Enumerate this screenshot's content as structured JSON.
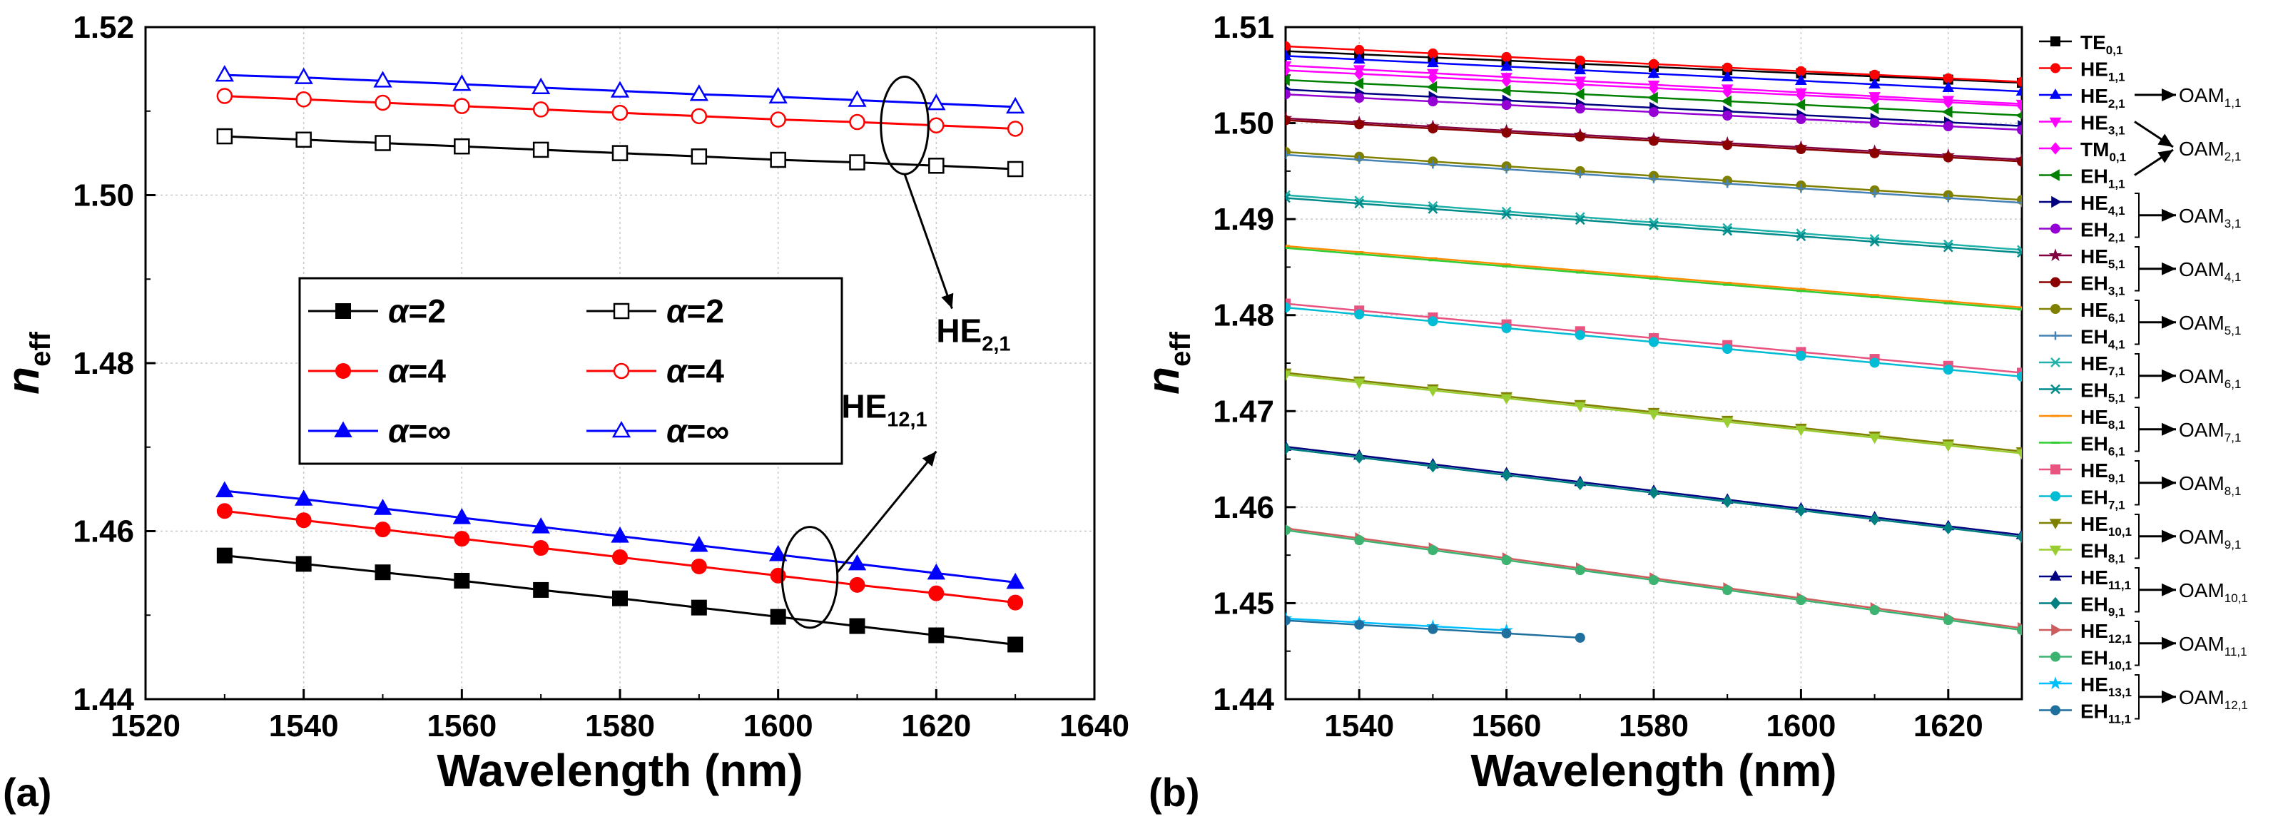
{
  "panels": [
    {
      "panel_label": "(a)",
      "chart_data": {
        "type": "line",
        "xlabel": "Wavelength (nm)",
        "ylabel": "n",
        "ylabel_sub": "eff",
        "xlim": [
          1520,
          1640
        ],
        "ylim": [
          1.44,
          1.52
        ],
        "xticks": [
          1520,
          1540,
          1560,
          1580,
          1600,
          1620,
          1640
        ],
        "yticks": [
          1.44,
          1.46,
          1.48,
          1.5,
          1.52
        ],
        "ytick_labels": [
          "1.44",
          "1.46",
          "1.48",
          "1.50",
          "1.52"
        ],
        "grid": true,
        "legend_placement": "center-left",
        "series": [
          {
            "name": "α=2",
            "marker": "square",
            "filled": true,
            "color": "#000000",
            "x": [
              1530,
              1540,
              1550,
              1560,
              1570,
              1580,
              1590,
              1600,
              1610,
              1620,
              1630
            ],
            "y": [
              1.4571,
              1.4561,
              1.4551,
              1.4541,
              1.453,
              1.452,
              1.4509,
              1.4498,
              1.4487,
              1.4476,
              1.4465
            ]
          },
          {
            "name": "α=4",
            "marker": "circle",
            "filled": true,
            "color": "#ff0000",
            "x": [
              1530,
              1540,
              1550,
              1560,
              1570,
              1580,
              1590,
              1600,
              1610,
              1620,
              1630
            ],
            "y": [
              1.4624,
              1.4613,
              1.4602,
              1.4591,
              1.458,
              1.4569,
              1.4558,
              1.4547,
              1.4536,
              1.4526,
              1.4515
            ]
          },
          {
            "name": "α=∞",
            "marker": "triangle",
            "filled": true,
            "color": "#0000ff",
            "x": [
              1530,
              1540,
              1550,
              1560,
              1570,
              1580,
              1590,
              1600,
              1610,
              1620,
              1630
            ],
            "y": [
              1.4648,
              1.4638,
              1.4627,
              1.4616,
              1.4605,
              1.4594,
              1.4583,
              1.4572,
              1.4561,
              1.455,
              1.4539
            ]
          },
          {
            "name": "α=2",
            "marker": "square",
            "filled": false,
            "color": "#000000",
            "x": [
              1530,
              1540,
              1550,
              1560,
              1570,
              1580,
              1590,
              1600,
              1610,
              1620,
              1630
            ],
            "y": [
              1.507,
              1.5066,
              1.5062,
              1.5058,
              1.5054,
              1.505,
              1.5046,
              1.5042,
              1.5039,
              1.5035,
              1.5031
            ]
          },
          {
            "name": "α=4",
            "marker": "circle",
            "filled": false,
            "color": "#ff0000",
            "x": [
              1530,
              1540,
              1550,
              1560,
              1570,
              1580,
              1590,
              1600,
              1610,
              1620,
              1630
            ],
            "y": [
              1.5118,
              1.5114,
              1.511,
              1.5106,
              1.5102,
              1.5098,
              1.5094,
              1.509,
              1.5087,
              1.5083,
              1.5079
            ]
          },
          {
            "name": "α=∞",
            "marker": "triangle",
            "filled": false,
            "color": "#0000ff",
            "x": [
              1530,
              1540,
              1550,
              1560,
              1570,
              1580,
              1590,
              1600,
              1610,
              1620,
              1630
            ],
            "y": [
              1.5143,
              1.514,
              1.5136,
              1.5132,
              1.5128,
              1.5124,
              1.512,
              1.5117,
              1.5113,
              1.5109,
              1.5105
            ]
          }
        ],
        "annotations": [
          {
            "text": "HE",
            "sub": "2,1",
            "ellipse_center": [
              1616,
              1.5083
            ],
            "ellipse_radii": [
              3,
              0.0058
            ],
            "arrow_to": [
              1622,
              1.4865
            ],
            "text_at": [
              1620,
              1.4825
            ]
          },
          {
            "text": "HE",
            "sub": "12,1",
            "ellipse_center": [
              1604,
              1.4545
            ],
            "ellipse_radii": [
              3.5,
              0.006
            ],
            "arrow_to": [
              1620,
              1.4695
            ],
            "text_at": [
              1608,
              1.4735
            ]
          }
        ]
      }
    },
    {
      "panel_label": "(b)",
      "chart_data": {
        "type": "line",
        "xlabel": "Wavelength (nm)",
        "ylabel": "n",
        "ylabel_sub": "eff",
        "xlim": [
          1530,
          1630
        ],
        "ylim": [
          1.44,
          1.51
        ],
        "xticks": [
          1540,
          1560,
          1580,
          1600,
          1620
        ],
        "yticks": [
          1.44,
          1.45,
          1.46,
          1.47,
          1.48,
          1.49,
          1.5,
          1.51
        ],
        "ytick_labels": [
          "1.44",
          "1.45",
          "1.46",
          "1.47",
          "1.48",
          "1.49",
          "1.50",
          "1.51"
        ],
        "grid": true,
        "legend_placement": "outside-right",
        "x_points": [
          1530,
          1540,
          1550,
          1560,
          1570,
          1580,
          1590,
          1600,
          1610,
          1620,
          1630
        ],
        "series": [
          {
            "name": "TE",
            "sub": "0,1",
            "color": "#000000",
            "marker": "square",
            "y_start": 1.5075,
            "y_end": 1.5042
          },
          {
            "name": "HE",
            "sub": "1,1",
            "color": "#ff0000",
            "marker": "circle",
            "y_start": 1.508,
            "y_end": 1.5043
          },
          {
            "name": "HE",
            "sub": "2,1",
            "color": "#0000ff",
            "marker": "triangle",
            "y_start": 1.507,
            "y_end": 1.5033
          },
          {
            "name": "HE",
            "sub": "3,1",
            "color": "#ff00ff",
            "marker": "tri-down",
            "y_start": 1.506,
            "y_end": 1.502
          },
          {
            "name": "TM",
            "sub": "0,1",
            "color": "#ff00ff",
            "marker": "diamond",
            "y_start": 1.5055,
            "y_end": 1.5018
          },
          {
            "name": "EH",
            "sub": "1,1",
            "color": "#008000",
            "marker": "tri-left",
            "y_start": 1.5045,
            "y_end": 1.5008
          },
          {
            "name": "HE",
            "sub": "4,1",
            "color": "#000080",
            "marker": "tri-right",
            "y_start": 1.5035,
            "y_end": 1.4997
          },
          {
            "name": "EH",
            "sub": "2,1",
            "color": "#9400d3",
            "marker": "circle",
            "y_start": 1.503,
            "y_end": 1.4993
          },
          {
            "name": "HE",
            "sub": "5,1",
            "color": "#800040",
            "marker": "star",
            "y_start": 1.5005,
            "y_end": 1.4962
          },
          {
            "name": "EH",
            "sub": "3,1",
            "color": "#8b0000",
            "marker": "circle",
            "y_start": 1.5003,
            "y_end": 1.496
          },
          {
            "name": "HE",
            "sub": "6,1",
            "color": "#808000",
            "marker": "circle",
            "y_start": 1.497,
            "y_end": 1.492
          },
          {
            "name": "EH",
            "sub": "4,1",
            "color": "#4682b4",
            "marker": "plus",
            "y_start": 1.4967,
            "y_end": 1.4917
          },
          {
            "name": "HE",
            "sub": "7,1",
            "color": "#20b2aa",
            "marker": "cross",
            "y_start": 1.4925,
            "y_end": 1.4868
          },
          {
            "name": "EH",
            "sub": "5,1",
            "color": "#008b8b",
            "marker": "cross",
            "y_start": 1.4922,
            "y_end": 1.4865
          },
          {
            "name": "HE",
            "sub": "8,1",
            "color": "#ff8c00",
            "marker": "dash",
            "y_start": 1.4872,
            "y_end": 1.4808
          },
          {
            "name": "EH",
            "sub": "6,1",
            "color": "#32cd32",
            "marker": "dash",
            "y_start": 1.487,
            "y_end": 1.4806
          },
          {
            "name": "HE",
            "sub": "9,1",
            "color": "#e75480",
            "marker": "square",
            "y_start": 1.4812,
            "y_end": 1.474
          },
          {
            "name": "EH",
            "sub": "7,1",
            "color": "#00bcd4",
            "marker": "circle",
            "y_start": 1.4808,
            "y_end": 1.4736
          },
          {
            "name": "HE",
            "sub": "10,1",
            "color": "#808000",
            "marker": "tri-down",
            "y_start": 1.474,
            "y_end": 1.4658
          },
          {
            "name": "EH",
            "sub": "8,1",
            "color": "#9acd32",
            "marker": "tri-down",
            "y_start": 1.4738,
            "y_end": 1.4656
          },
          {
            "name": "HE",
            "sub": "11,1",
            "color": "#000080",
            "marker": "triangle",
            "y_start": 1.4663,
            "y_end": 1.4571
          },
          {
            "name": "EH",
            "sub": "9,1",
            "color": "#008080",
            "marker": "diamond",
            "y_start": 1.4661,
            "y_end": 1.4569
          },
          {
            "name": "HE",
            "sub": "12,1",
            "color": "#cd5c5c",
            "marker": "tri-right",
            "y_start": 1.4578,
            "y_end": 1.4474
          },
          {
            "name": "EH",
            "sub": "10,1",
            "color": "#3cb371",
            "marker": "circle",
            "y_start": 1.4576,
            "y_end": 1.4472
          },
          {
            "name": "HE",
            "sub": "13,1",
            "color": "#00bfff",
            "marker": "star",
            "y_start": 1.4484,
            "y_end": 1.4443,
            "x_end": 1560
          },
          {
            "name": "EH",
            "sub": "11,1",
            "color": "#1f6f9f",
            "marker": "circle",
            "y_start": 1.4482,
            "y_end": 1.4437,
            "x_end": 1570
          }
        ],
        "oam_groups": [
          {
            "label": "OAM",
            "sub": "1,1",
            "items": [
              2
            ]
          },
          {
            "label": "OAM",
            "sub": "2,1",
            "items": [
              3,
              4,
              5
            ]
          },
          {
            "label": "OAM",
            "sub": "3,1",
            "items": [
              6,
              7
            ]
          },
          {
            "label": "OAM",
            "sub": "4,1",
            "items": [
              8,
              9
            ]
          },
          {
            "label": "OAM",
            "sub": "5,1",
            "items": [
              10,
              11
            ]
          },
          {
            "label": "OAM",
            "sub": "6,1",
            "items": [
              12,
              13
            ]
          },
          {
            "label": "OAM",
            "sub": "7,1",
            "items": [
              14,
              15
            ]
          },
          {
            "label": "OAM",
            "sub": "8,1",
            "items": [
              16,
              17
            ]
          },
          {
            "label": "OAM",
            "sub": "9,1",
            "items": [
              18,
              19
            ]
          },
          {
            "label": "OAM",
            "sub": "10,1",
            "items": [
              20,
              21
            ]
          },
          {
            "label": "OAM",
            "sub": "11,1",
            "items": [
              22,
              23
            ]
          },
          {
            "label": "OAM",
            "sub": "12,1",
            "items": [
              24,
              25
            ]
          }
        ]
      }
    }
  ]
}
